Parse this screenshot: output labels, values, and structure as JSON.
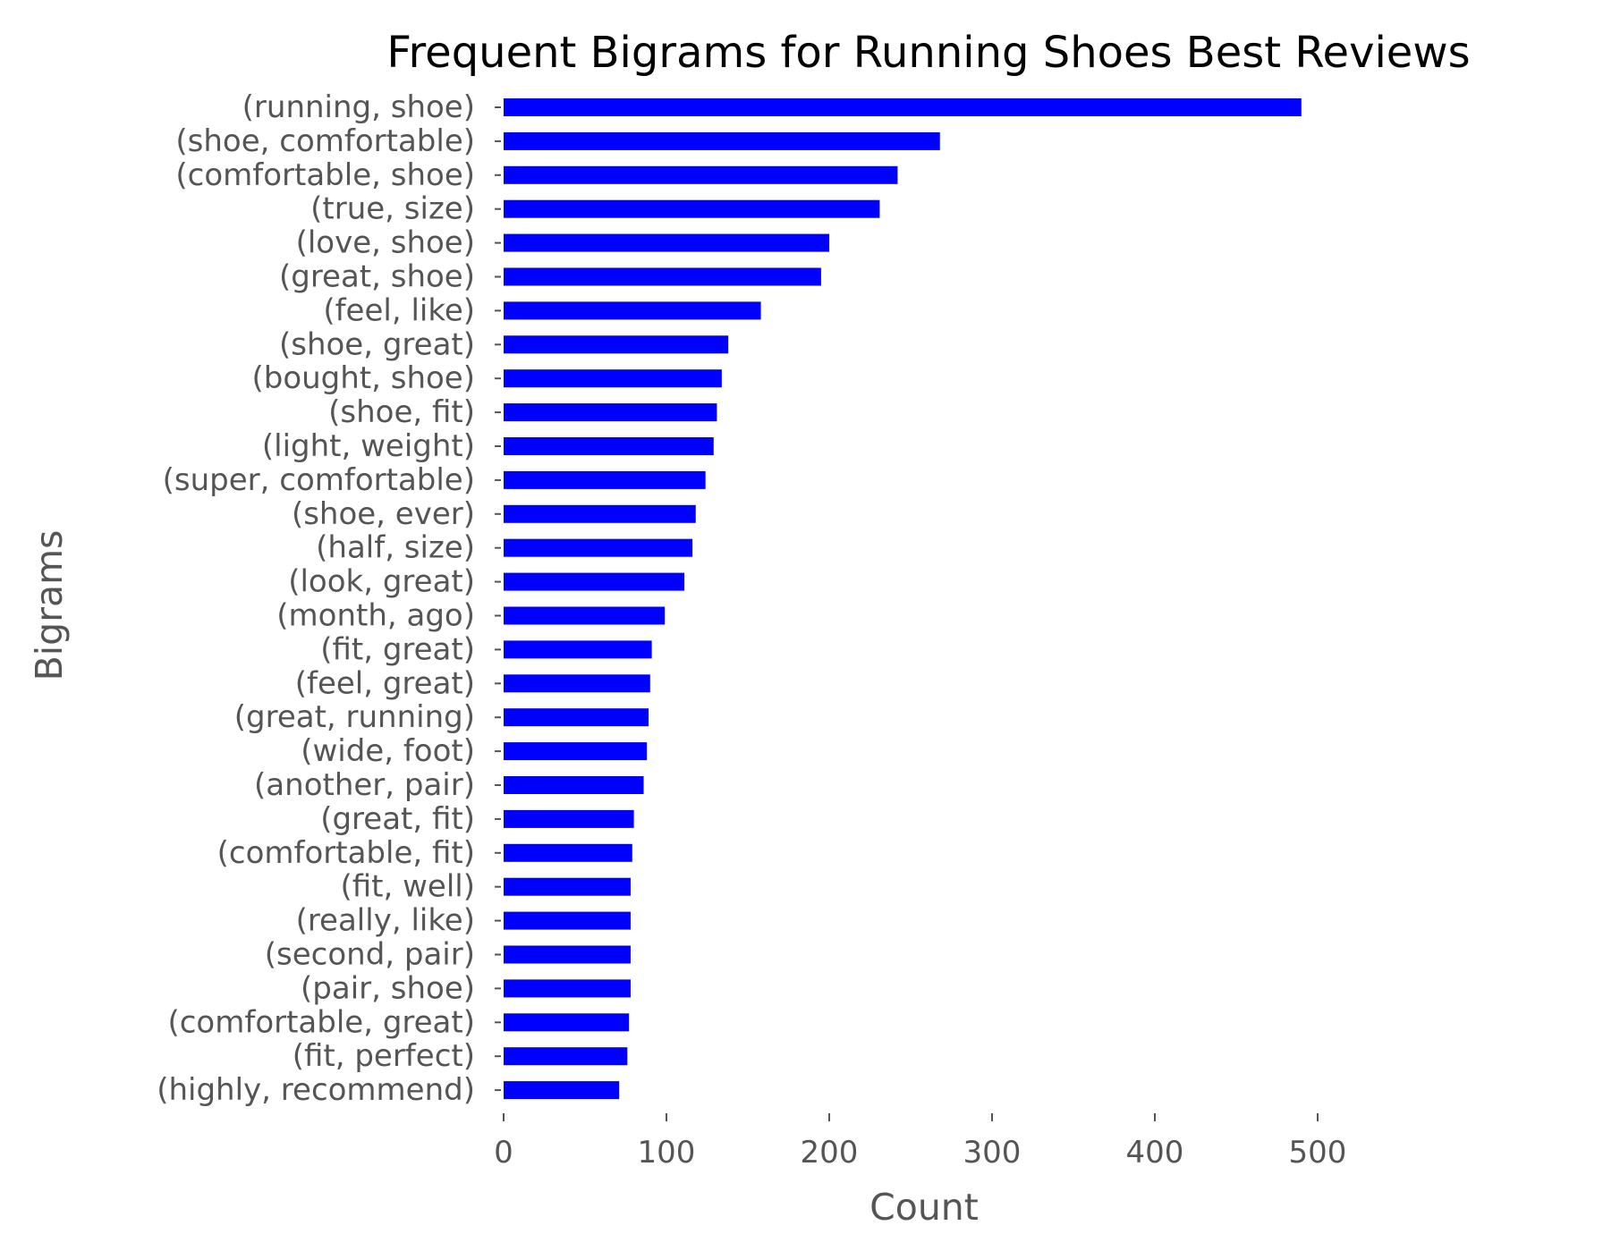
{
  "chart_data": {
    "type": "bar",
    "orientation": "horizontal",
    "title": "Frequent Bigrams for Running Shoes Best Reviews",
    "xlabel": "Count",
    "ylabel": "Bigrams",
    "xlim": [
      0,
      500
    ],
    "xticks": [
      "0",
      "100",
      "200",
      "300",
      "400",
      "500"
    ],
    "grid": false,
    "bar_color": "#0000ff",
    "categories": [
      "(running, shoe)",
      "(shoe, comfortable)",
      "(comfortable, shoe)",
      "(true, size)",
      "(love, shoe)",
      "(great, shoe)",
      "(feel, like)",
      "(shoe, great)",
      "(bought, shoe)",
      "(shoe, fit)",
      "(light, weight)",
      "(super, comfortable)",
      "(shoe, ever)",
      "(half, size)",
      "(look, great)",
      "(month, ago)",
      "(fit, great)",
      "(feel, great)",
      "(great, running)",
      "(wide, foot)",
      "(another, pair)",
      "(great, fit)",
      "(comfortable, fit)",
      "(fit, well)",
      "(really, like)",
      "(second, pair)",
      "(pair, shoe)",
      "(comfortable, great)",
      "(fit, perfect)",
      "(highly, recommend)"
    ],
    "values": [
      490,
      268,
      242,
      231,
      200,
      195,
      158,
      138,
      134,
      131,
      129,
      124,
      118,
      116,
      111,
      99,
      91,
      90,
      89,
      88,
      86,
      80,
      79,
      78,
      78,
      78,
      78,
      77,
      76,
      71
    ]
  }
}
